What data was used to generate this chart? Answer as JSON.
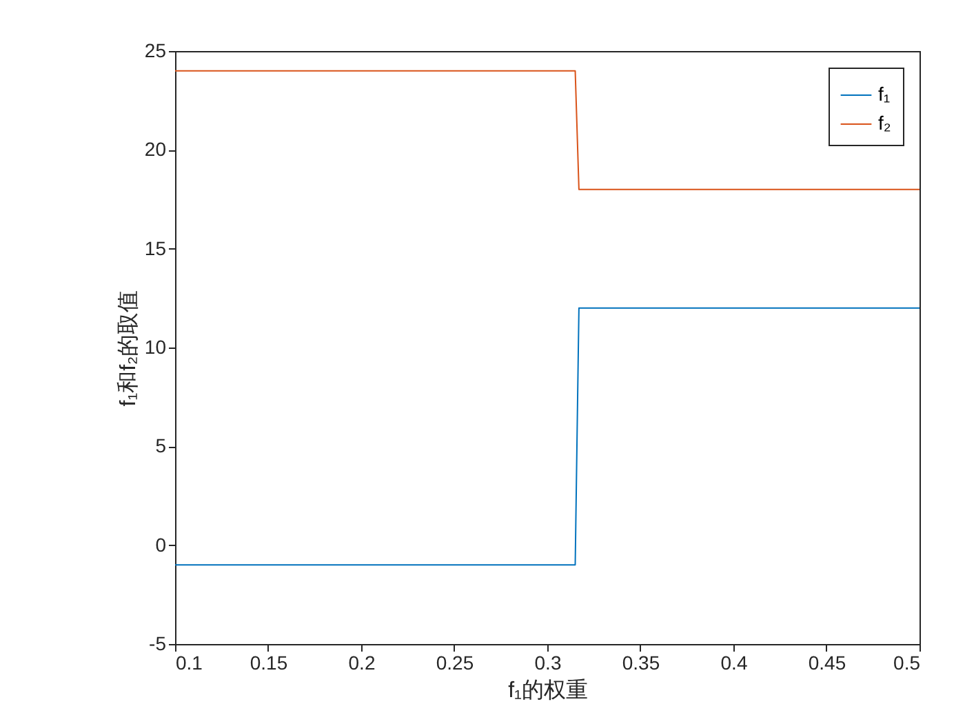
{
  "chart_data": {
    "type": "line",
    "xlabel": "f₁的权重",
    "ylabel": "f₁和f₂的取值",
    "x": [
      0.1,
      0.315,
      0.317,
      0.5
    ],
    "series": [
      {
        "name": "f₁",
        "color": "#0072bd",
        "values": [
          -1,
          -1,
          12,
          12
        ]
      },
      {
        "name": "f₂",
        "color": "#d95319",
        "values": [
          24,
          24,
          18,
          18
        ]
      }
    ],
    "xlim": [
      0.1,
      0.5
    ],
    "xticks": [
      0.1,
      0.15,
      0.2,
      0.25,
      0.3,
      0.35,
      0.4,
      0.45,
      0.5
    ],
    "ylim": [
      -5,
      25
    ],
    "yticks": [
      -5,
      0,
      5,
      10,
      15,
      20,
      25
    ],
    "grid": false,
    "legend": "top right"
  }
}
